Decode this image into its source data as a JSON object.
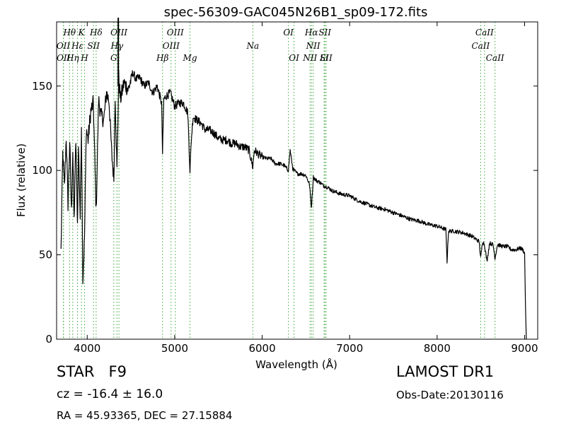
{
  "info": {
    "object_class": "STAR",
    "subclass": "F9",
    "redshift_text": "cz = -16.4 ± 16.0",
    "coords_text": "RA = 45.93365, DEC = 27.15884",
    "survey": "LAMOST DR1",
    "obs_date": "Obs-Date:20130116"
  },
  "chart_data": {
    "type": "line",
    "title": "spec-56309-GAC045N26B1_sp09-172.fits",
    "xlabel": "Wavelength (Å)",
    "ylabel": "Flux (relative)",
    "xlim": [
      3650,
      9150
    ],
    "ylim": [
      0,
      188
    ],
    "xticks": [
      4000,
      5000,
      6000,
      7000,
      8000,
      9000
    ],
    "yticks": [
      0,
      50,
      100,
      150
    ],
    "grid": false,
    "line_color": "#000000",
    "marker_color": "#3aa63a",
    "spectral_lines": [
      {
        "label": "Hθ",
        "wave": 3798,
        "row": 0
      },
      {
        "label": "K",
        "wave": 3934,
        "row": 0
      },
      {
        "label": "Hδ",
        "wave": 4102,
        "row": 0
      },
      {
        "label": "OIII",
        "wave": 4363,
        "row": 0
      },
      {
        "label": "OIII",
        "wave": 5007,
        "row": 0
      },
      {
        "label": "OI",
        "wave": 6300,
        "row": 0
      },
      {
        "label": "Hα",
        "wave": 6563,
        "row": 0
      },
      {
        "label": "SII",
        "wave": 6717,
        "row": 0
      },
      {
        "label": "CaII",
        "wave": 8542,
        "row": 0
      },
      {
        "label": "OII",
        "wave": 3727,
        "row": 1
      },
      {
        "label": "Hε",
        "wave": 3889,
        "row": 1
      },
      {
        "label": "SII",
        "wave": 4072,
        "row": 1
      },
      {
        "label": "Hγ",
        "wave": 4340,
        "row": 1
      },
      {
        "label": "OIII",
        "wave": 4959,
        "row": 1
      },
      {
        "label": "Na",
        "wave": 5893,
        "row": 1
      },
      {
        "label": "NII",
        "wave": 6583,
        "row": 1
      },
      {
        "label": "CaII",
        "wave": 8498,
        "row": 1
      },
      {
        "label": "OII",
        "wave": 3729,
        "row": 2
      },
      {
        "label": "Hη",
        "wave": 3835,
        "row": 2
      },
      {
        "label": "H",
        "wave": 3969,
        "row": 2
      },
      {
        "label": "G",
        "wave": 4304,
        "row": 2
      },
      {
        "label": "Hβ",
        "wave": 4861,
        "row": 2
      },
      {
        "label": "Mg",
        "wave": 5175,
        "row": 2
      },
      {
        "label": "OI",
        "wave": 6364,
        "row": 2
      },
      {
        "label": "NII",
        "wave": 6548,
        "row": 2
      },
      {
        "label": "Lі",
        "wave": 6708,
        "row": 2
      },
      {
        "label": "SII",
        "wave": 6731,
        "row": 2
      },
      {
        "label": "CaII",
        "wave": 8662,
        "row": 2
      }
    ],
    "spectrum": {
      "x": [
        3700,
        3720,
        3740,
        3760,
        3780,
        3800,
        3820,
        3835,
        3850,
        3870,
        3889,
        3900,
        3920,
        3934,
        3950,
        3969,
        3990,
        4010,
        4040,
        4070,
        4102,
        4130,
        4160,
        4190,
        4220,
        4250,
        4280,
        4304,
        4320,
        4340,
        4360,
        4380,
        4420,
        4470,
        4520,
        4560,
        4600,
        4650,
        4700,
        4750,
        4800,
        4850,
        4861,
        4875,
        4900,
        4950,
        5000,
        5050,
        5100,
        5150,
        5175,
        5190,
        5210,
        5250,
        5300,
        5350,
        5400,
        5450,
        5500,
        5550,
        5600,
        5650,
        5700,
        5750,
        5800,
        5850,
        5893,
        5910,
        5950,
        6000,
        6050,
        6100,
        6150,
        6200,
        6250,
        6300,
        6320,
        6350,
        6400,
        6450,
        6500,
        6540,
        6563,
        6585,
        6620,
        6660,
        6700,
        6750,
        6800,
        6900,
        7000,
        7100,
        7200,
        7300,
        7400,
        7500,
        7600,
        7700,
        7800,
        7900,
        8000,
        8050,
        8100,
        8114,
        8130,
        8200,
        8300,
        8400,
        8450,
        8480,
        8498,
        8520,
        8542,
        8570,
        8600,
        8640,
        8662,
        8690,
        8750,
        8800,
        8850,
        8900,
        8950,
        8980,
        9000,
        9010,
        9020
      ],
      "y": [
        52,
        110,
        90,
        120,
        80,
        118,
        75,
        112,
        70,
        118,
        68,
        115,
        72,
        128,
        35,
        60,
        125,
        118,
        135,
        140,
        75,
        142,
        132,
        130,
        146,
        141,
        110,
        95,
        145,
        100,
        155,
        142,
        152,
        148,
        158,
        154,
        155,
        150,
        152,
        146,
        150,
        140,
        110,
        142,
        144,
        146,
        138,
        140,
        140,
        134,
        100,
        118,
        132,
        130,
        128,
        124,
        124,
        122,
        119,
        118,
        118,
        116,
        116,
        114,
        114,
        112,
        102,
        112,
        110,
        108,
        107,
        107,
        104,
        104,
        103,
        100,
        112,
        101,
        98,
        98,
        97,
        92,
        78,
        96,
        94,
        93,
        91,
        90,
        88,
        86,
        85,
        82,
        80,
        78,
        77,
        75,
        73,
        71,
        70,
        68,
        67,
        66,
        65,
        46,
        64,
        64,
        63,
        61,
        59,
        58,
        48,
        58,
        56,
        46,
        57,
        56,
        48,
        56,
        55,
        55,
        53,
        53,
        54,
        53,
        51,
        20,
        0
      ]
    }
  }
}
